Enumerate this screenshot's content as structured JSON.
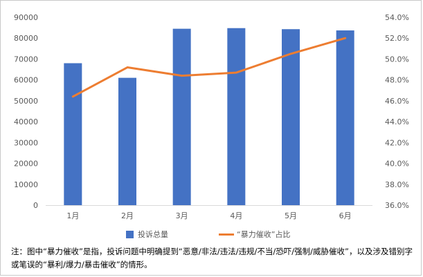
{
  "chart_data": {
    "type": "bar+line",
    "categories": [
      "1月",
      "2月",
      "3月",
      "4月",
      "5月",
      "6月"
    ],
    "series": [
      {
        "name": "投诉总量",
        "type": "bar",
        "axis": "left",
        "color": "#4472C4",
        "values": [
          68000,
          61000,
          84500,
          84800,
          84300,
          83700
        ]
      },
      {
        "name": "“暴力催收”占比",
        "type": "line",
        "axis": "right",
        "color": "#ED7D31",
        "values": [
          46.4,
          49.2,
          48.4,
          48.7,
          50.5,
          52.0
        ]
      }
    ],
    "y_left": {
      "min": 0,
      "max": 90000,
      "step": 10000,
      "ticks": [
        "0",
        "10000",
        "20000",
        "30000",
        "40000",
        "50000",
        "60000",
        "70000",
        "80000",
        "90000"
      ]
    },
    "y_right": {
      "min": 36,
      "max": 54,
      "step": 2,
      "ticks": [
        "36.0%",
        "38.0%",
        "40.0%",
        "42.0%",
        "44.0%",
        "46.0%",
        "48.0%",
        "50.0%",
        "52.0%",
        "54.0%"
      ]
    },
    "grid": false,
    "legend_position": "bottom"
  },
  "note": "注：图中“暴力催收”是指，投诉问题中明确提到“恶意/非法/违法/违规/不当/恐吓/强制/威胁催收”，以及涉及错别字或笔误的“暴利/爆力/暴击催收”的情形。"
}
